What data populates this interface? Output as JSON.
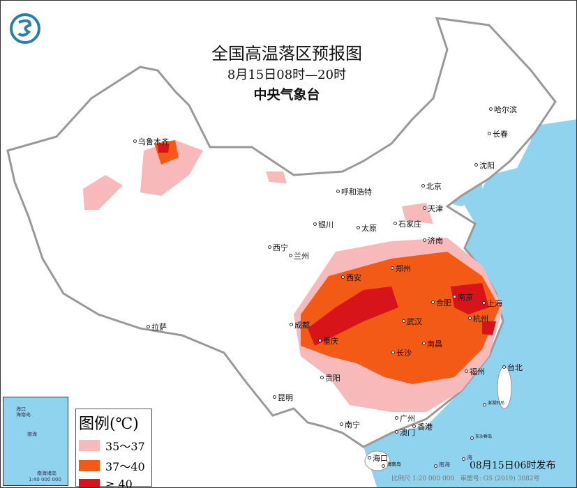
{
  "title": "全国高温落区预报图",
  "period": "8月15日08时—20时",
  "agency": "中央气象台",
  "legend": {
    "title": "图例(℃)",
    "items": [
      {
        "label": "35～37",
        "color": "#f7b9b9"
      },
      {
        "label": "37～40",
        "color": "#f25a16"
      },
      {
        "label": "≥ 40",
        "color": "#d7141a"
      }
    ]
  },
  "issued": "08月15日06时发布",
  "scale_text": "比例尺 1:20 000 000",
  "map_number": "审图号: GS (2019) 3082号",
  "inset": {
    "sea": "南海",
    "islands": "南海诸岛",
    "hainan": "海南岛",
    "haikou": "海口",
    "scale": "1:40 000 000"
  },
  "sea_labels": {
    "south_sea": "南海",
    "south_sea2": "海",
    "hainan_island": "海南岛",
    "dongsha": "东沙群岛",
    "penghu": "澎湖列岛"
  },
  "cities": [
    "乌鲁木齐",
    "哈尔滨",
    "长春",
    "沈阳",
    "呼和浩特",
    "北京",
    "天津",
    "石家庄",
    "太原",
    "济南",
    "银川",
    "西宁",
    "兰州",
    "郑州",
    "西安",
    "合肥",
    "南京",
    "上海",
    "武汉",
    "杭州",
    "成都",
    "重庆",
    "长沙",
    "南昌",
    "福州",
    "台北",
    "拉萨",
    "贵阳",
    "昆明",
    "南宁",
    "广州",
    "香港",
    "澳门",
    "海口"
  ],
  "colors": {
    "sea": "#8fd3ef",
    "land": "#ffffff",
    "border": "#999999",
    "logo": "#2a7fa8"
  },
  "logo_icon": "cma-logo-icon"
}
